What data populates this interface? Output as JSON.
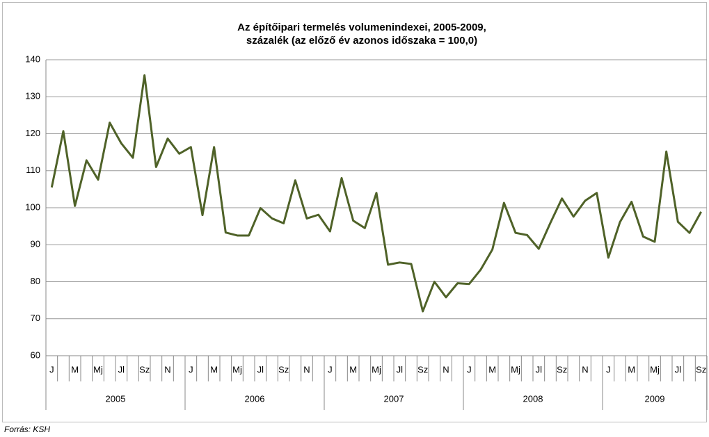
{
  "chart_data": {
    "type": "line",
    "title": [
      "Az építőipari termelés volumenindexei, 2005-2009,",
      "százalék (az előző év azonos időszaka = 100,0)"
    ],
    "source": "Forrás: KSH",
    "categories": [
      "J",
      null,
      "M",
      null,
      "Mj",
      null,
      "Jl",
      null,
      "Sz",
      null,
      "N",
      null,
      "J",
      null,
      "M",
      null,
      "Mj",
      null,
      "Jl",
      null,
      "Sz",
      null,
      "N",
      null,
      "J",
      null,
      "M",
      null,
      "Mj",
      null,
      "Jl",
      null,
      "Sz",
      null,
      "N",
      null,
      "J",
      null,
      "M",
      null,
      "Mj",
      null,
      "Jl",
      null,
      "Sz",
      null,
      "N",
      null,
      "J",
      null,
      "M",
      null,
      "Mj",
      null,
      "Jl",
      null,
      "Sz"
    ],
    "year_groups": [
      "2005",
      "2006",
      "2007",
      "2008",
      "2009"
    ],
    "series": [
      {
        "color": "#4f6228",
        "values": [
          105.5,
          120.7,
          100.5,
          112.8,
          107.6,
          123,
          117.4,
          113.5,
          135.8,
          111,
          118.7,
          114.6,
          116.4,
          98,
          116.4,
          93.3,
          92.5,
          92.5,
          99.9,
          97.1,
          95.8,
          107.4,
          97.1,
          98.1,
          93.6,
          108,
          96.5,
          94.5,
          104,
          84.6,
          85.2,
          84.8,
          72,
          80,
          75.8,
          79.6,
          79.4,
          83.3,
          88.7,
          101.3,
          93.2,
          92.6,
          88.9,
          95.9,
          102.5,
          97.6,
          101.9,
          104,
          86.5,
          96.1,
          101.6,
          92.2,
          90.8,
          115.2,
          96.2,
          93.2,
          98.9
        ]
      }
    ],
    "ylim": [
      60,
      140
    ],
    "yticks": [
      60,
      70,
      80,
      90,
      100,
      110,
      120,
      130,
      140
    ],
    "grid": true
  }
}
